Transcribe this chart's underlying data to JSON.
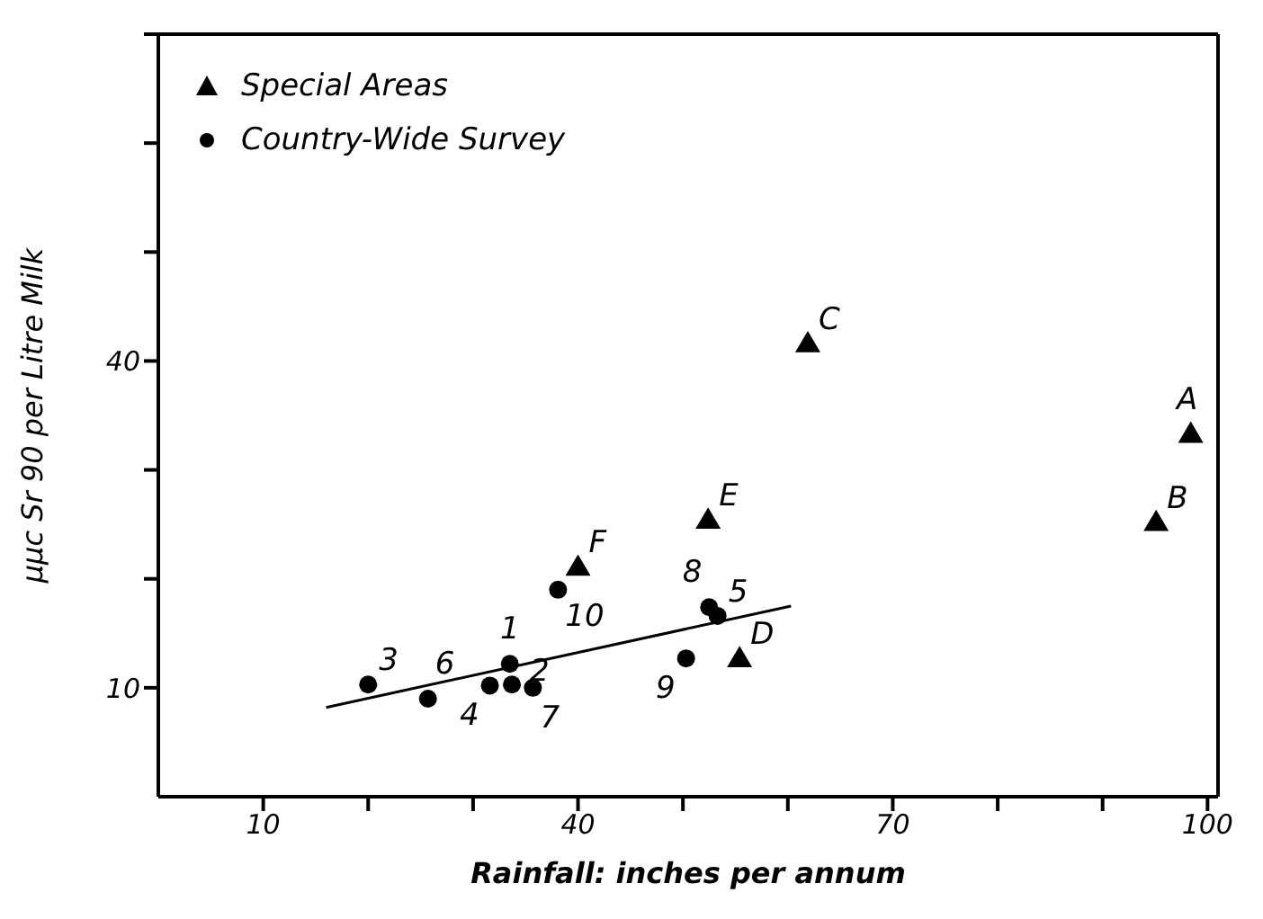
{
  "chart_data": {
    "type": "scatter",
    "xlabel": "Rainfall: inches per annum",
    "ylabel": "μμc Sr 90 per Litre Milk",
    "xlim": [
      0,
      101
    ],
    "xticks": [
      {
        "value": 10,
        "label": "10"
      },
      {
        "value": 20,
        "label": null
      },
      {
        "value": 30,
        "label": null
      },
      {
        "value": 40,
        "label": "40"
      },
      {
        "value": 50,
        "label": null
      },
      {
        "value": 60,
        "label": null
      },
      {
        "value": 70,
        "label": "70"
      },
      {
        "value": 80,
        "label": null
      },
      {
        "value": 90,
        "label": null
      },
      {
        "value": 100,
        "label": "100"
      }
    ],
    "ylim": [
      0,
      70
    ],
    "yticks": [
      {
        "value": 10,
        "label": "10"
      },
      {
        "value": 20,
        "label": null
      },
      {
        "value": 30,
        "label": null
      },
      {
        "value": 40,
        "label": "40"
      },
      {
        "value": 50,
        "label": null
      },
      {
        "value": 60,
        "label": null
      },
      {
        "value": 70,
        "label": null
      }
    ],
    "grid": false,
    "legend": "top left",
    "series": [
      {
        "name": "Special Areas",
        "marker": "triangle",
        "color": "#000000",
        "x": [
          98.4,
          95.1,
          61.9,
          55.4,
          52.4,
          40
        ],
        "values": [
          33.3,
          25.2,
          41.6,
          12.7,
          25.4,
          21.1
        ]
      },
      {
        "name": "Country-Wide Survey",
        "marker": "circle",
        "color": "#000000",
        "x": [
          33.5,
          33.7,
          20,
          31.6,
          53.3,
          25.7,
          35.7,
          52.5,
          50.3,
          38.1
        ],
        "values": [
          12.2,
          10.3,
          10.3,
          10.2,
          16.6,
          9.0,
          10.0,
          17.4,
          12.7,
          19.0
        ]
      },
      {
        "type": "line",
        "marker": "none",
        "color": "#000000",
        "x": [
          16,
          60.3
        ],
        "values": [
          8.2,
          17.5
        ]
      }
    ],
    "annotations": [
      {
        "text": "A",
        "x": 98.4,
        "y": 33.3
      },
      {
        "text": "B",
        "x": 95.1,
        "y": 25.2
      },
      {
        "text": "C",
        "x": 61.9,
        "y": 41.6
      },
      {
        "text": "D",
        "x": 55.4,
        "y": 12.7
      },
      {
        "text": "E",
        "x": 52.4,
        "y": 25.4
      },
      {
        "text": "F",
        "x": 40,
        "y": 21.1
      },
      {
        "text": "1",
        "x": 33.5,
        "y": 12.2
      },
      {
        "text": "2",
        "x": 33.7,
        "y": 10.3
      },
      {
        "text": "3",
        "x": 20,
        "y": 10.3
      },
      {
        "text": "4",
        "x": 31.6,
        "y": 10.2
      },
      {
        "text": "5",
        "x": 53.3,
        "y": 16.6
      },
      {
        "text": "6",
        "x": 25.7,
        "y": 9.0
      },
      {
        "text": "7",
        "x": 35.7,
        "y": 10.0
      },
      {
        "text": "8",
        "x": 52.5,
        "y": 17.4
      },
      {
        "text": "9",
        "x": 50.3,
        "y": 12.7
      },
      {
        "text": "10",
        "x": 38.1,
        "y": 19.0
      }
    ]
  }
}
